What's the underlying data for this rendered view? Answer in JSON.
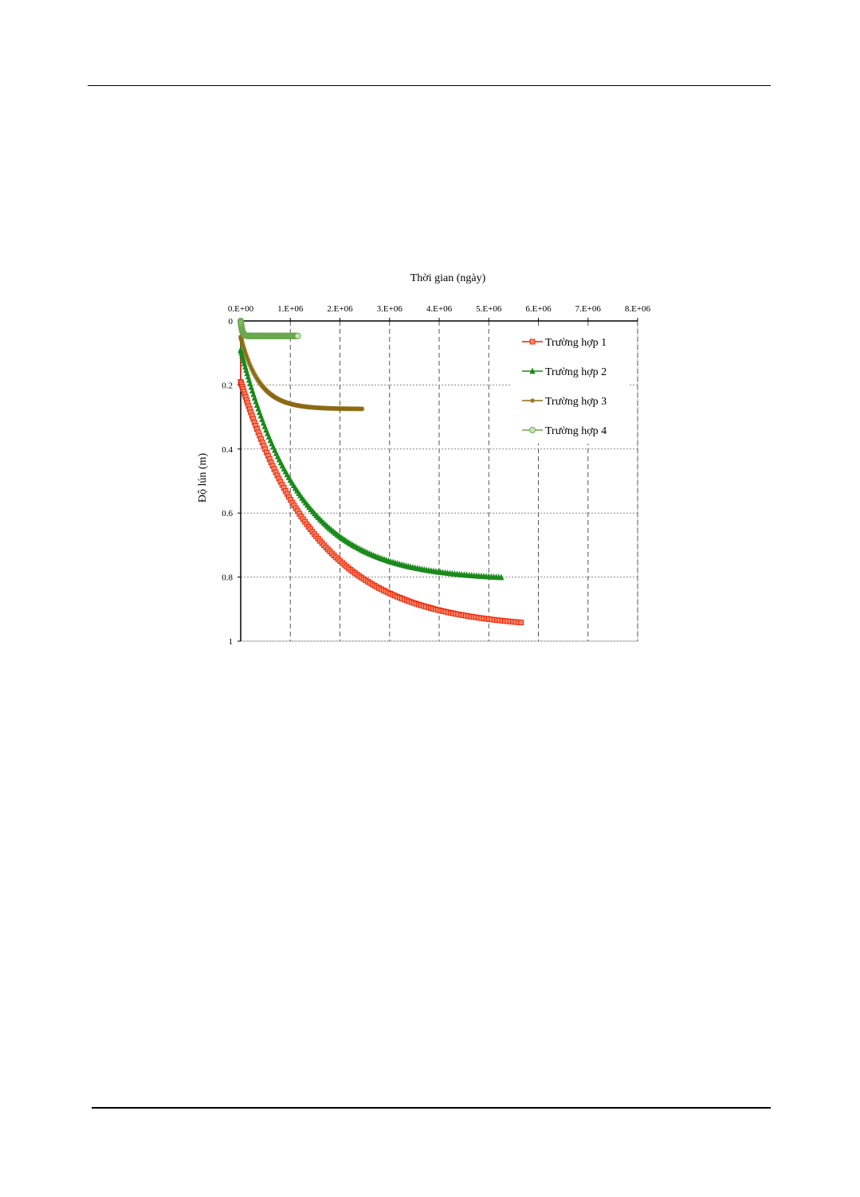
{
  "chart_data": {
    "type": "scatter",
    "xlabel": "Thời gian (ngày)",
    "ylabel": "Độ lún (m)",
    "xlim": [
      0,
      8000000
    ],
    "ylim": [
      0,
      1
    ],
    "y_inverted": true,
    "x_axis_position": "top",
    "x_ticks": [
      0,
      1000000,
      2000000,
      3000000,
      4000000,
      5000000,
      6000000,
      7000000,
      8000000
    ],
    "x_tick_labels": [
      "0.E+00",
      "1.E+06",
      "2.E+06",
      "3.E+06",
      "4.E+06",
      "5.E+06",
      "6.E+06",
      "7.E+06",
      "8.E+06"
    ],
    "y_ticks": [
      0,
      0.2,
      0.4,
      0.6,
      0.8,
      1
    ],
    "y_tick_labels": [
      "0",
      "0.2",
      "0.4",
      "0.6",
      "0.8",
      "1"
    ],
    "grid": true,
    "legend_position": "top-right",
    "series": [
      {
        "name": "Trường hợp 1",
        "color": "#ee1c00",
        "marker": "square",
        "x_max": 5650000,
        "y_final": 0.962,
        "y_start": 0.19,
        "tau": 1550000
      },
      {
        "name": "Trường hợp 2",
        "color": "#1a8a1a",
        "marker": "triangle",
        "x_max": 5250000,
        "y_final": 0.81,
        "y_start": 0.09,
        "tau": 1200000
      },
      {
        "name": "Trường hợp 3",
        "color": "#8b6b14",
        "marker": "star",
        "x_max": 2450000,
        "y_final": 0.275,
        "y_start": 0.05,
        "tau": 380000
      },
      {
        "name": "Trường hợp 4",
        "color": "#6aa84f",
        "marker": "circle",
        "x_max": 1150000,
        "y_final": 0.047,
        "y_start": 0.0,
        "tau": 30000
      }
    ]
  }
}
